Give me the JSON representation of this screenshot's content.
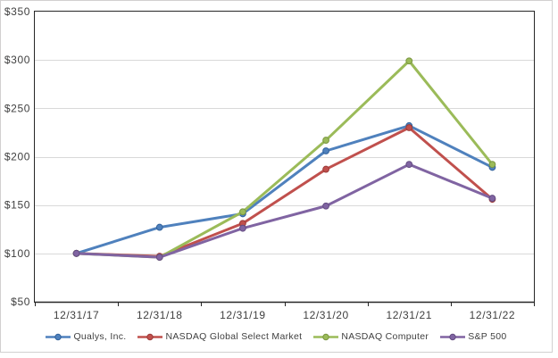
{
  "chart_data": {
    "type": "line",
    "title": "",
    "xlabel": "",
    "ylabel": "",
    "categories": [
      "12/31/17",
      "12/31/18",
      "12/31/19",
      "12/31/20",
      "12/31/21",
      "12/31/22"
    ],
    "series": [
      {
        "name": "Qualys, Inc.",
        "color": "#4F81BD",
        "marker_border": "#31619B",
        "values": [
          100,
          127,
          141,
          206,
          232,
          189
        ]
      },
      {
        "name": "NASDAQ Global Select Market",
        "color": "#C0504D",
        "marker_border": "#9C3A38",
        "values": [
          100,
          97,
          131,
          187,
          230,
          156
        ]
      },
      {
        "name": "NASDAQ Computer",
        "color": "#9BBB59",
        "marker_border": "#7A9640",
        "values": [
          100,
          96,
          143,
          217,
          299,
          192
        ]
      },
      {
        "name": "S&P 500",
        "color": "#8064A2",
        "marker_border": "#644C82",
        "values": [
          100,
          96,
          126,
          149,
          192,
          157
        ]
      }
    ],
    "y_ticks": [
      {
        "label": "$50",
        "value": 50
      },
      {
        "label": "$100",
        "value": 100
      },
      {
        "label": "$150",
        "value": 150
      },
      {
        "label": "$200",
        "value": 200
      },
      {
        "label": "$250",
        "value": 250
      },
      {
        "label": "$300",
        "value": 300
      },
      {
        "label": "$350",
        "value": 350
      }
    ],
    "ylim": [
      50,
      350
    ],
    "grid": "horizontal",
    "legend_position": "bottom",
    "colors": {
      "gridline": "#D9D9D9",
      "axis": "#262626",
      "tick_text": "#3F3F3F",
      "frame_border": "#D2D0D0",
      "background": "#FFFFFF"
    }
  }
}
